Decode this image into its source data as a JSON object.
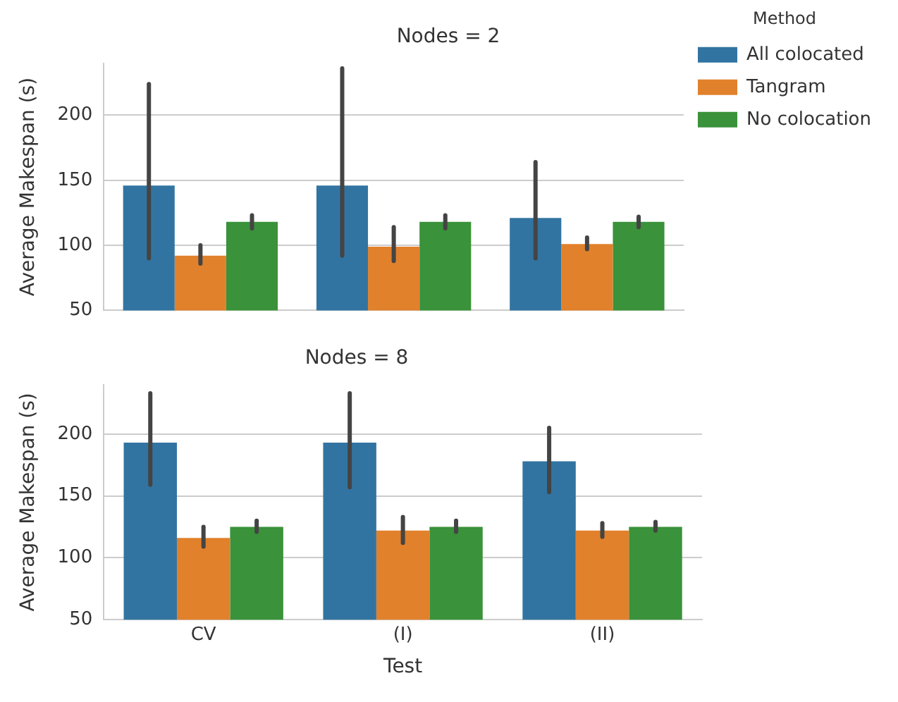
{
  "chart_data": [
    {
      "type": "bar",
      "title": "Nodes = 2",
      "ylabel": "Average Makespan (s)",
      "legend_title": "Method",
      "legend": "right",
      "grid": "y",
      "tick_labels": "y",
      "categories": [
        null,
        null,
        null
      ],
      "ylim": [
        50,
        240
      ],
      "yticks": [
        50,
        100,
        150,
        200
      ],
      "series": [
        {
          "name": "All colocated",
          "color": "#3274a1",
          "values": [
            146,
            146,
            121
          ],
          "errors": [
            [
              90,
              224
            ],
            [
              92,
              236
            ],
            [
              90,
              164
            ]
          ]
        },
        {
          "name": "Tangram",
          "color": "#e1812c",
          "values": [
            92,
            99,
            101
          ],
          "errors": [
            [
              86,
              100
            ],
            [
              88,
              114
            ],
            [
              97,
              106
            ]
          ]
        },
        {
          "name": "No colocation",
          "color": "#3a923a",
          "values": [
            118,
            118,
            118
          ],
          "errors": [
            [
              113,
              123
            ],
            [
              113,
              123
            ],
            [
              114,
              122
            ]
          ]
        }
      ]
    },
    {
      "type": "bar",
      "title": "Nodes = 8",
      "ylabel": "Average Makespan (s)",
      "xlabel": "Test",
      "grid": "y",
      "categories": [
        "CV",
        "(I)",
        "(II)"
      ],
      "ylim": [
        50,
        240
      ],
      "yticks": [
        50,
        100,
        150,
        200
      ],
      "series": [
        {
          "color": "#3274a1",
          "values": [
            193,
            193,
            178
          ],
          "errors": [
            [
              159,
              233
            ],
            [
              157,
              233
            ],
            [
              153,
              205
            ]
          ]
        },
        {
          "color": "#e1812c",
          "values": [
            116,
            122,
            122
          ],
          "errors": [
            [
              109,
              125
            ],
            [
              112,
              133
            ],
            [
              117,
              128
            ]
          ]
        },
        {
          "color": "#3a923a",
          "values": [
            125,
            125,
            125
          ],
          "errors": [
            [
              121,
              130
            ],
            [
              121,
              130
            ],
            [
              122,
              129
            ]
          ]
        }
      ]
    }
  ]
}
